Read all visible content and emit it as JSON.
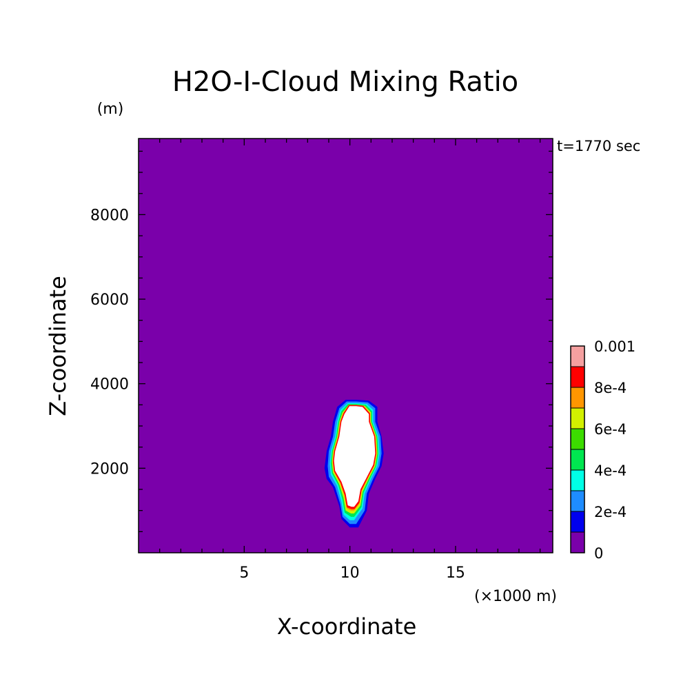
{
  "chart_data": {
    "type": "heatmap",
    "title": "H2O-I-Cloud Mixing Ratio",
    "xlabel": "X-coordinate",
    "ylabel": "Z-coordinate",
    "x_unit": "(×1000 m)",
    "y_unit": "(m)",
    "time_label": "t=1770 sec",
    "xlim": [
      0,
      19.6
    ],
    "ylim": [
      0,
      9800
    ],
    "x_ticks": [
      5,
      10,
      15
    ],
    "y_ticks": [
      2000,
      4000,
      6000,
      8000
    ],
    "x_tick_labels": [
      "5",
      "10",
      "15"
    ],
    "y_tick_labels": [
      "2000",
      "4000",
      "6000",
      "8000"
    ],
    "background_color": "#7a00aa",
    "overflow_color": "#ffffff",
    "colorbar": {
      "levels": [
        0,
        0.0001,
        0.0002,
        0.0003,
        0.0004,
        0.0005,
        0.0006,
        0.0007,
        0.0008,
        0.0009,
        0.001
      ],
      "colors": [
        "#7a00aa",
        "#0000ee",
        "#1e8cff",
        "#00ffe6",
        "#00e650",
        "#3cdc00",
        "#d2f000",
        "#ff9600",
        "#ff0000",
        "#f5a0a0"
      ],
      "tick_values": [
        0,
        0.0002,
        0.0004,
        0.0006,
        0.0008,
        0.001
      ],
      "tick_labels": [
        "0",
        "2e-4",
        "4e-4",
        "6e-4",
        "8e-4",
        "0.001"
      ]
    },
    "cloud": {
      "description_levels": "nested contours from outer (low) to inner (high)",
      "contours": [
        {
          "level": 0.0001,
          "color": "#0000ee",
          "points": [
            [
              10.3,
              3620
            ],
            [
              10.9,
              3600
            ],
            [
              11.3,
              3450
            ],
            [
              11.3,
              3100
            ],
            [
              11.5,
              2750
            ],
            [
              11.6,
              2350
            ],
            [
              11.5,
              2050
            ],
            [
              11.2,
              1750
            ],
            [
              10.9,
              1400
            ],
            [
              10.8,
              1000
            ],
            [
              10.4,
              600
            ],
            [
              10.0,
              600
            ],
            [
              9.6,
              800
            ],
            [
              9.5,
              1100
            ],
            [
              9.2,
              1550
            ],
            [
              8.9,
              1750
            ],
            [
              8.8,
              2000
            ],
            [
              8.9,
              2400
            ],
            [
              9.1,
              2750
            ],
            [
              9.2,
              3100
            ],
            [
              9.4,
              3450
            ],
            [
              9.8,
              3620
            ]
          ]
        },
        {
          "level": 0.0002,
          "color": "#1e8cff",
          "points": [
            [
              10.3,
              3580
            ],
            [
              10.85,
              3560
            ],
            [
              11.2,
              3420
            ],
            [
              11.2,
              3100
            ],
            [
              11.45,
              2750
            ],
            [
              11.5,
              2350
            ],
            [
              11.4,
              2050
            ],
            [
              11.1,
              1750
            ],
            [
              10.8,
              1400
            ],
            [
              10.7,
              1000
            ],
            [
              10.3,
              680
            ],
            [
              10.0,
              680
            ],
            [
              9.65,
              850
            ],
            [
              9.55,
              1150
            ],
            [
              9.3,
              1550
            ],
            [
              9.0,
              1800
            ],
            [
              8.95,
              2050
            ],
            [
              9.0,
              2400
            ],
            [
              9.2,
              2750
            ],
            [
              9.3,
              3100
            ],
            [
              9.5,
              3420
            ],
            [
              9.85,
              3580
            ]
          ]
        },
        {
          "level": 0.0003,
          "color": "#00ffe6",
          "points": [
            [
              10.3,
              3540
            ],
            [
              10.8,
              3520
            ],
            [
              11.1,
              3380
            ],
            [
              11.1,
              3100
            ],
            [
              11.35,
              2750
            ],
            [
              11.4,
              2350
            ],
            [
              11.3,
              2050
            ],
            [
              11.0,
              1750
            ],
            [
              10.7,
              1400
            ],
            [
              10.6,
              1050
            ],
            [
              10.2,
              770
            ],
            [
              10.0,
              770
            ],
            [
              9.7,
              900
            ],
            [
              9.6,
              1200
            ],
            [
              9.4,
              1580
            ],
            [
              9.1,
              1850
            ],
            [
              9.05,
              2100
            ],
            [
              9.1,
              2400
            ],
            [
              9.3,
              2750
            ],
            [
              9.4,
              3100
            ],
            [
              9.55,
              3380
            ],
            [
              9.9,
              3540
            ]
          ]
        },
        {
          "level": 0.0004,
          "color": "#00e650",
          "points": [
            [
              10.3,
              3520
            ],
            [
              10.75,
              3500
            ],
            [
              11.05,
              3350
            ],
            [
              11.05,
              3100
            ],
            [
              11.3,
              2750
            ],
            [
              11.35,
              2350
            ],
            [
              11.25,
              2050
            ],
            [
              10.95,
              1750
            ],
            [
              10.65,
              1420
            ],
            [
              10.55,
              1080
            ],
            [
              10.2,
              850
            ],
            [
              10.05,
              850
            ],
            [
              9.75,
              950
            ],
            [
              9.65,
              1250
            ],
            [
              9.45,
              1600
            ],
            [
              9.15,
              1880
            ],
            [
              9.1,
              2120
            ],
            [
              9.15,
              2400
            ],
            [
              9.35,
              2750
            ],
            [
              9.45,
              3100
            ],
            [
              9.6,
              3350
            ],
            [
              9.9,
              3520
            ]
          ]
        },
        {
          "level": 0.0006,
          "color": "#d2f000",
          "points": [
            [
              10.3,
              3500
            ],
            [
              10.7,
              3480
            ],
            [
              11.0,
              3320
            ],
            [
              11.0,
              3100
            ],
            [
              11.25,
              2750
            ],
            [
              11.3,
              2350
            ],
            [
              11.2,
              2050
            ],
            [
              10.9,
              1760
            ],
            [
              10.6,
              1440
            ],
            [
              10.5,
              1120
            ],
            [
              10.2,
              930
            ],
            [
              10.05,
              930
            ],
            [
              9.8,
              1000
            ],
            [
              9.7,
              1300
            ],
            [
              9.5,
              1620
            ],
            [
              9.2,
              1900
            ],
            [
              9.15,
              2140
            ],
            [
              9.2,
              2400
            ],
            [
              9.4,
              2750
            ],
            [
              9.5,
              3100
            ],
            [
              9.65,
              3320
            ],
            [
              9.95,
              3500
            ]
          ]
        },
        {
          "level": 0.0008,
          "color": "#ff9600",
          "points": [
            [
              10.3,
              3490
            ],
            [
              10.65,
              3470
            ],
            [
              10.95,
              3300
            ],
            [
              10.95,
              3100
            ],
            [
              11.2,
              2750
            ],
            [
              11.25,
              2350
            ],
            [
              11.15,
              2060
            ],
            [
              10.85,
              1770
            ],
            [
              10.55,
              1460
            ],
            [
              10.45,
              1160
            ],
            [
              10.2,
              1000
            ],
            [
              10.05,
              1000
            ],
            [
              9.85,
              1050
            ],
            [
              9.75,
              1340
            ],
            [
              9.55,
              1640
            ],
            [
              9.25,
              1920
            ],
            [
              9.2,
              2150
            ],
            [
              9.25,
              2400
            ],
            [
              9.45,
              2750
            ],
            [
              9.55,
              3100
            ],
            [
              9.7,
              3300
            ],
            [
              9.95,
              3490
            ]
          ]
        },
        {
          "level": 0.0009,
          "color": "#ff0000",
          "points": [
            [
              10.3,
              3480
            ],
            [
              10.62,
              3460
            ],
            [
              10.92,
              3290
            ],
            [
              10.92,
              3100
            ],
            [
              11.17,
              2750
            ],
            [
              11.22,
              2350
            ],
            [
              11.12,
              2070
            ],
            [
              10.82,
              1780
            ],
            [
              10.52,
              1480
            ],
            [
              10.42,
              1190
            ],
            [
              10.2,
              1050
            ],
            [
              10.07,
              1050
            ],
            [
              9.88,
              1090
            ],
            [
              9.78,
              1370
            ],
            [
              9.58,
              1660
            ],
            [
              9.28,
              1930
            ],
            [
              9.23,
              2160
            ],
            [
              9.28,
              2400
            ],
            [
              9.48,
              2750
            ],
            [
              9.58,
              3100
            ],
            [
              9.72,
              3290
            ],
            [
              9.97,
              3480
            ]
          ]
        },
        {
          "level": 0.001,
          "color": "#ffffff",
          "points": [
            [
              10.3,
              3470
            ],
            [
              10.6,
              3450
            ],
            [
              10.9,
              3280
            ],
            [
              10.9,
              3100
            ],
            [
              11.15,
              2750
            ],
            [
              11.2,
              2350
            ],
            [
              11.1,
              2080
            ],
            [
              10.8,
              1790
            ],
            [
              10.5,
              1500
            ],
            [
              10.4,
              1220
            ],
            [
              10.2,
              1090
            ],
            [
              10.08,
              1090
            ],
            [
              9.9,
              1120
            ],
            [
              9.8,
              1400
            ],
            [
              9.6,
              1680
            ],
            [
              9.3,
              1940
            ],
            [
              9.25,
              2170
            ],
            [
              9.3,
              2400
            ],
            [
              9.5,
              2750
            ],
            [
              9.6,
              3100
            ],
            [
              9.74,
              3280
            ],
            [
              9.98,
              3470
            ]
          ]
        }
      ]
    }
  }
}
